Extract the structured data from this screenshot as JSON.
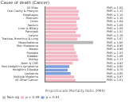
{
  "chart_data": {
    "type": "bar",
    "orientation": "horizontal",
    "stacked": true,
    "title": "Cause of death (Cancer)",
    "x_label": "Proportionate Mortality Ratio (PMR)",
    "categories": [
      "All Sites",
      "Oral Cavity & Pharynx",
      "Esophagus",
      "Stomach",
      "Colon",
      "Rectum",
      "Liver & Biliary",
      "Pancreas",
      "Larynx",
      "Trachea, Bronchus & Lung",
      "Mesothelioma",
      "Skin Melanoma",
      "Breast",
      "Prostate",
      "Bladder",
      "Kidney",
      "Brain & CNS",
      "Non-Hodgkin's Lymphoma",
      "Hodgkin's Disease",
      "Leukemia",
      "Multiple Myeloma",
      "All Other Cancer"
    ],
    "series": [
      {
        "name": "Non-sig",
        "color": "#b8b8b8",
        "values": [
          null,
          null,
          null,
          null,
          null,
          null,
          null,
          null,
          null,
          null,
          1.6,
          null,
          null,
          null,
          null,
          null,
          null,
          null,
          null,
          null,
          null,
          null
        ],
        "value_labels": [
          null,
          null,
          null,
          null,
          null,
          null,
          null,
          null,
          null,
          null,
          "PMR = 1.60",
          null,
          null,
          null,
          null,
          null,
          null,
          null,
          null,
          null,
          null,
          null
        ]
      },
      {
        "name": "p < 0.05",
        "color": "#f4b6c2",
        "values": [
          1.05,
          1.12,
          1.1,
          1.15,
          1.04,
          1.06,
          1.09,
          1.02,
          1.18,
          1.07,
          null,
          0.95,
          0.98,
          1.03,
          1.08,
          1.11,
          0.92,
          null,
          null,
          null,
          0.97,
          1.01
        ],
        "value_labels": [
          "PMR = 1.05",
          "PMR = 1.12",
          "PMR = 1.10",
          "PMR = 1.15",
          "PMR = 1.04",
          "PMR = 1.06",
          "PMR = 1.09",
          "PMR = 1.02",
          "PMR = 1.18",
          "PMR = 1.07",
          null,
          "PMR = 0.95",
          "PMR = 0.98",
          "PMR = 1.03",
          "PMR = 1.08",
          "PMR = 1.11",
          "PMR = 0.92",
          null,
          null,
          null,
          "PMR = 0.97",
          "PMR = 1.01"
        ]
      },
      {
        "name": "p < 0.01",
        "color": "#7f9fdc",
        "values": [
          null,
          null,
          null,
          null,
          null,
          null,
          null,
          null,
          null,
          null,
          null,
          null,
          null,
          null,
          null,
          null,
          null,
          0.8,
          0.75,
          0.85,
          null,
          null
        ],
        "value_labels": [
          null,
          null,
          null,
          null,
          null,
          null,
          null,
          null,
          null,
          null,
          null,
          null,
          null,
          null,
          null,
          null,
          null,
          "PMR = 0.80",
          "PMR = 0.75",
          "PMR = 0.85",
          null,
          null
        ]
      }
    ],
    "xlim": [
      0,
      2
    ],
    "tick_labels": "y",
    "grid": false,
    "legend": "bottom",
    "data_labels": true
  }
}
